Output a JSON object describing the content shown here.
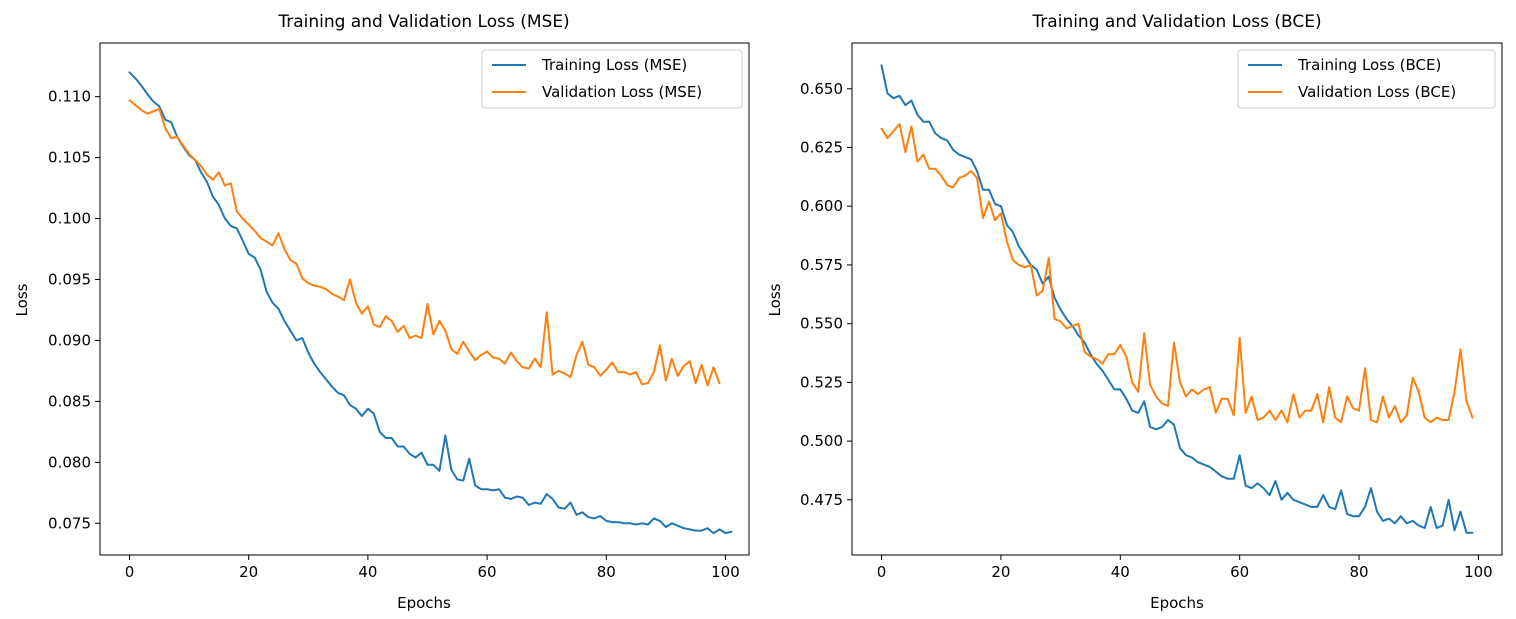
{
  "chart_data": [
    {
      "type": "line",
      "title": "Training and Validation Loss (MSE)",
      "xlabel": "Epochs",
      "ylabel": "Loss",
      "xlim": [
        -4.95,
        103.95
      ],
      "ylim": [
        0.0724,
        0.1144
      ],
      "x_ticks": [
        0,
        20,
        40,
        60,
        80,
        100
      ],
      "y_ticks": [
        0.075,
        0.08,
        0.085,
        0.09,
        0.095,
        0.1,
        0.105,
        0.11
      ],
      "tick_decimals": 3,
      "grid": false,
      "legend_position": "upper right",
      "x_start": 0,
      "series": [
        {
          "name": "Training Loss (MSE)",
          "color": "#1f77b4",
          "values": [
            0.112,
            0.1115,
            0.1109,
            0.1102,
            0.1096,
            0.1092,
            0.1081,
            0.1079,
            0.1067,
            0.1059,
            0.1052,
            0.1048,
            0.1038,
            0.103,
            0.1018,
            0.1011,
            0.1,
            0.0994,
            0.0992,
            0.0982,
            0.0971,
            0.0968,
            0.0958,
            0.094,
            0.0931,
            0.0926,
            0.0916,
            0.0908,
            0.09,
            0.0902,
            0.089,
            0.0881,
            0.0874,
            0.0868,
            0.0862,
            0.0857,
            0.0855,
            0.0847,
            0.0844,
            0.0838,
            0.0844,
            0.084,
            0.0825,
            0.082,
            0.082,
            0.0813,
            0.0813,
            0.0807,
            0.0804,
            0.0808,
            0.0798,
            0.0798,
            0.0793,
            0.0822,
            0.0794,
            0.0786,
            0.0785,
            0.0803,
            0.0781,
            0.0778,
            0.0778,
            0.0777,
            0.0778,
            0.0771,
            0.077,
            0.0772,
            0.0771,
            0.0765,
            0.0767,
            0.0766,
            0.0774,
            0.077,
            0.0763,
            0.0762,
            0.0767,
            0.0757,
            0.0759,
            0.0755,
            0.0754,
            0.0756,
            0.0752,
            0.0751,
            0.0751,
            0.075,
            0.075,
            0.0749,
            0.075,
            0.0749,
            0.0754,
            0.0752,
            0.0747,
            0.075,
            0.0748,
            0.0746,
            0.0745,
            0.0744,
            0.0744,
            0.0746,
            0.0742,
            0.0745,
            0.0742,
            0.0743
          ]
        },
        {
          "name": "Validation Loss (MSE)",
          "color": "#ff7f0e",
          "values": [
            0.1097,
            0.1093,
            0.1089,
            0.1086,
            0.1088,
            0.109,
            0.1074,
            0.1066,
            0.1067,
            0.106,
            0.1053,
            0.1048,
            0.1043,
            0.1036,
            0.1032,
            0.1038,
            0.1027,
            0.1029,
            0.1006,
            0.1,
            0.0995,
            0.099,
            0.0984,
            0.0981,
            0.0978,
            0.0988,
            0.0975,
            0.0966,
            0.0963,
            0.0951,
            0.0947,
            0.0945,
            0.0944,
            0.0942,
            0.0938,
            0.0936,
            0.0933,
            0.095,
            0.0931,
            0.0922,
            0.0928,
            0.0913,
            0.0911,
            0.092,
            0.0916,
            0.0907,
            0.0912,
            0.0902,
            0.0904,
            0.0902,
            0.093,
            0.0905,
            0.0916,
            0.0908,
            0.0893,
            0.0889,
            0.0899,
            0.0891,
            0.0884,
            0.0888,
            0.0891,
            0.0886,
            0.0885,
            0.0881,
            0.089,
            0.0883,
            0.0878,
            0.0877,
            0.0885,
            0.0878,
            0.0923,
            0.0872,
            0.0875,
            0.0873,
            0.087,
            0.0888,
            0.0899,
            0.088,
            0.0878,
            0.0871,
            0.0876,
            0.0882,
            0.0874,
            0.0874,
            0.0872,
            0.0874,
            0.0864,
            0.0865,
            0.0874,
            0.0896,
            0.0867,
            0.0885,
            0.0871,
            0.0879,
            0.0883,
            0.0865,
            0.088,
            0.0863,
            0.0878,
            0.0865
          ]
        }
      ]
    },
    {
      "type": "line",
      "title": "Training and Validation Loss (BCE)",
      "xlabel": "Epochs",
      "ylabel": "Loss",
      "xlim": [
        -4.95,
        103.95
      ],
      "ylim": [
        0.4515,
        0.6695
      ],
      "x_ticks": [
        0,
        20,
        40,
        60,
        80,
        100
      ],
      "y_ticks": [
        0.475,
        0.5,
        0.525,
        0.55,
        0.575,
        0.6,
        0.625,
        0.65
      ],
      "tick_decimals": 3,
      "grid": false,
      "legend_position": "upper right",
      "x_start": 0,
      "series": [
        {
          "name": "Training Loss (BCE)",
          "color": "#1f77b4",
          "values": [
            0.66,
            0.648,
            0.646,
            0.647,
            0.643,
            0.645,
            0.639,
            0.636,
            0.636,
            0.631,
            0.629,
            0.628,
            0.624,
            0.622,
            0.621,
            0.62,
            0.615,
            0.607,
            0.607,
            0.601,
            0.6,
            0.592,
            0.589,
            0.583,
            0.579,
            0.575,
            0.573,
            0.567,
            0.57,
            0.561,
            0.556,
            0.552,
            0.549,
            0.545,
            0.542,
            0.537,
            0.533,
            0.53,
            0.526,
            0.522,
            0.522,
            0.518,
            0.513,
            0.512,
            0.517,
            0.506,
            0.505,
            0.506,
            0.509,
            0.507,
            0.497,
            0.494,
            0.493,
            0.491,
            0.49,
            0.489,
            0.487,
            0.485,
            0.484,
            0.484,
            0.494,
            0.481,
            0.48,
            0.482,
            0.48,
            0.477,
            0.483,
            0.475,
            0.478,
            0.475,
            0.474,
            0.473,
            0.472,
            0.472,
            0.477,
            0.472,
            0.471,
            0.479,
            0.469,
            0.468,
            0.468,
            0.472,
            0.48,
            0.47,
            0.466,
            0.467,
            0.465,
            0.468,
            0.465,
            0.466,
            0.464,
            0.463,
            0.472,
            0.463,
            0.464,
            0.475,
            0.462,
            0.47,
            0.461,
            0.461
          ]
        },
        {
          "name": "Validation Loss (BCE)",
          "color": "#ff7f0e",
          "values": [
            0.633,
            0.629,
            0.632,
            0.635,
            0.623,
            0.634,
            0.619,
            0.622,
            0.616,
            0.616,
            0.613,
            0.609,
            0.608,
            0.612,
            0.613,
            0.615,
            0.612,
            0.595,
            0.602,
            0.594,
            0.597,
            0.585,
            0.577,
            0.575,
            0.574,
            0.575,
            0.562,
            0.564,
            0.578,
            0.552,
            0.551,
            0.548,
            0.549,
            0.55,
            0.538,
            0.536,
            0.535,
            0.533,
            0.537,
            0.537,
            0.541,
            0.536,
            0.525,
            0.521,
            0.546,
            0.524,
            0.519,
            0.516,
            0.515,
            0.542,
            0.525,
            0.519,
            0.522,
            0.52,
            0.522,
            0.523,
            0.512,
            0.518,
            0.518,
            0.511,
            0.544,
            0.512,
            0.519,
            0.509,
            0.51,
            0.513,
            0.509,
            0.513,
            0.508,
            0.52,
            0.51,
            0.513,
            0.513,
            0.52,
            0.508,
            0.523,
            0.51,
            0.508,
            0.519,
            0.514,
            0.513,
            0.531,
            0.509,
            0.508,
            0.519,
            0.51,
            0.515,
            0.508,
            0.511,
            0.527,
            0.521,
            0.51,
            0.508,
            0.51,
            0.509,
            0.509,
            0.521,
            0.539,
            0.517,
            0.51
          ]
        }
      ]
    }
  ]
}
